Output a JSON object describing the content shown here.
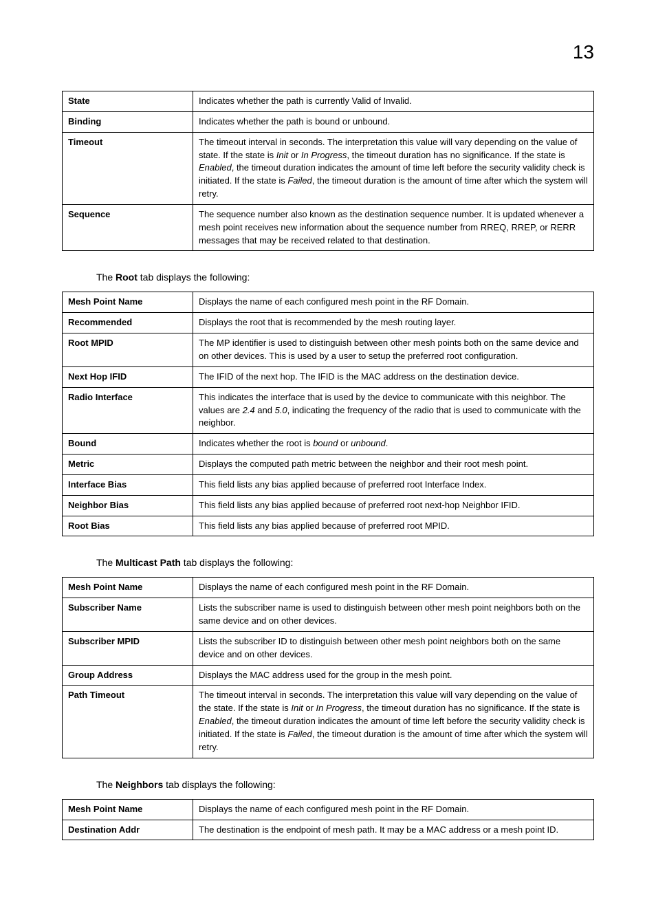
{
  "page_number": "13",
  "tables": {
    "t1": [
      {
        "label": "State",
        "desc": [
          {
            "t": "Indicates whether the path is currently Valid of Invalid."
          }
        ]
      },
      {
        "label": "Binding",
        "desc": [
          {
            "t": "Indicates whether the path is bound or unbound."
          }
        ]
      },
      {
        "label": "Timeout",
        "desc": [
          {
            "t": "The timeout interval in seconds. The interpretation this value will vary depending on the value of state. If the state is "
          },
          {
            "t": "Init",
            "i": true
          },
          {
            "t": " or "
          },
          {
            "t": "In Progress",
            "i": true
          },
          {
            "t": ", the timeout duration has no significance. If the state is "
          },
          {
            "t": "Enabled",
            "i": true
          },
          {
            "t": ", the timeout duration indicates the amount of time left before the security validity check is initiated. If the state is "
          },
          {
            "t": "Failed",
            "i": true
          },
          {
            "t": ", the timeout duration is the amount of time after which the system will retry."
          }
        ]
      },
      {
        "label": "Sequence",
        "desc": [
          {
            "t": "The sequence number also known as the destination sequence number. It is updated whenever a mesh point receives new information about the sequence number from RREQ, RREP, or RERR messages that may be received related to that destination."
          }
        ]
      }
    ],
    "t2": [
      {
        "label": "Mesh Point Name",
        "desc": [
          {
            "t": "Displays the name of each configured mesh point in the RF Domain."
          }
        ]
      },
      {
        "label": "Recommended",
        "desc": [
          {
            "t": "Displays the root that is recommended by the mesh routing layer."
          }
        ]
      },
      {
        "label": "Root MPID",
        "desc": [
          {
            "t": "The MP identifier is used to distinguish between other mesh points both on the same device and on other devices. This is used by a user to setup the preferred root configuration."
          }
        ]
      },
      {
        "label": "Next Hop IFID",
        "desc": [
          {
            "t": "The IFID of the next hop. The IFID is the MAC address on the destination device."
          }
        ]
      },
      {
        "label": "Radio Interface",
        "desc": [
          {
            "t": "This indicates the interface that is used by the device to communicate with this neighbor. The values are "
          },
          {
            "t": "2.4",
            "i": true
          },
          {
            "t": " and "
          },
          {
            "t": "5.0",
            "i": true
          },
          {
            "t": ", indicating the frequency of the radio that is used to communicate with the neighbor."
          }
        ]
      },
      {
        "label": "Bound",
        "desc": [
          {
            "t": "Indicates whether the root is "
          },
          {
            "t": "bound",
            "i": true
          },
          {
            "t": " or "
          },
          {
            "t": "unbound",
            "i": true
          },
          {
            "t": "."
          }
        ]
      },
      {
        "label": "Metric",
        "desc": [
          {
            "t": "Displays the computed path metric between the neighbor and their root mesh point."
          }
        ]
      },
      {
        "label": "Interface Bias",
        "desc": [
          {
            "t": "This field lists any bias applied because of preferred root Interface Index."
          }
        ]
      },
      {
        "label": "Neighbor Bias",
        "desc": [
          {
            "t": "This field lists any bias applied because of preferred root next-hop Neighbor IFID."
          }
        ]
      },
      {
        "label": "Root Bias",
        "desc": [
          {
            "t": "This field lists any bias applied because of preferred root MPID."
          }
        ]
      }
    ],
    "t3": [
      {
        "label": "Mesh Point Name",
        "desc": [
          {
            "t": "Displays the name of each configured mesh point in the RF Domain."
          }
        ]
      },
      {
        "label": "Subscriber Name",
        "desc": [
          {
            "t": "Lists the subscriber name is used to distinguish between other mesh point neighbors both on the same device and on other devices."
          }
        ]
      },
      {
        "label": "Subscriber MPID",
        "desc": [
          {
            "t": "Lists the subscriber ID to distinguish between other mesh point neighbors both on the same device and on other devices."
          }
        ]
      },
      {
        "label": "Group Address",
        "desc": [
          {
            "t": "Displays the MAC address used for the group in the mesh point."
          }
        ]
      },
      {
        "label": "Path Timeout",
        "desc": [
          {
            "t": "The timeout interval in seconds. The interpretation this value will vary depending on the value of the state. If the state is "
          },
          {
            "t": "Init",
            "i": true
          },
          {
            "t": " or "
          },
          {
            "t": "In Progress",
            "i": true
          },
          {
            "t": ", the timeout duration has no significance. If the state is "
          },
          {
            "t": "Enabled",
            "i": true
          },
          {
            "t": ", the timeout duration indicates the amount of time left before the security validity check is initiated. If the state is "
          },
          {
            "t": "Failed",
            "i": true
          },
          {
            "t": ", the timeout duration is the amount of time after which the system will retry."
          }
        ]
      }
    ],
    "t4": [
      {
        "label": "Mesh Point Name",
        "desc": [
          {
            "t": "Displays the name of each configured mesh point in the RF Domain."
          }
        ]
      },
      {
        "label": "Destination Addr",
        "desc": [
          {
            "t": "The destination is the endpoint of mesh path. It may be a MAC address or a mesh point ID."
          }
        ]
      }
    ]
  },
  "captions": {
    "c1": {
      "pre": "The ",
      "bold": "Root",
      "post": " tab displays the following:"
    },
    "c2": {
      "pre": "The ",
      "bold": "Multicast Path",
      "post": " tab displays the following:"
    },
    "c3": {
      "pre": "The ",
      "bold": "Neighbors",
      "post": " tab displays the following:"
    }
  }
}
